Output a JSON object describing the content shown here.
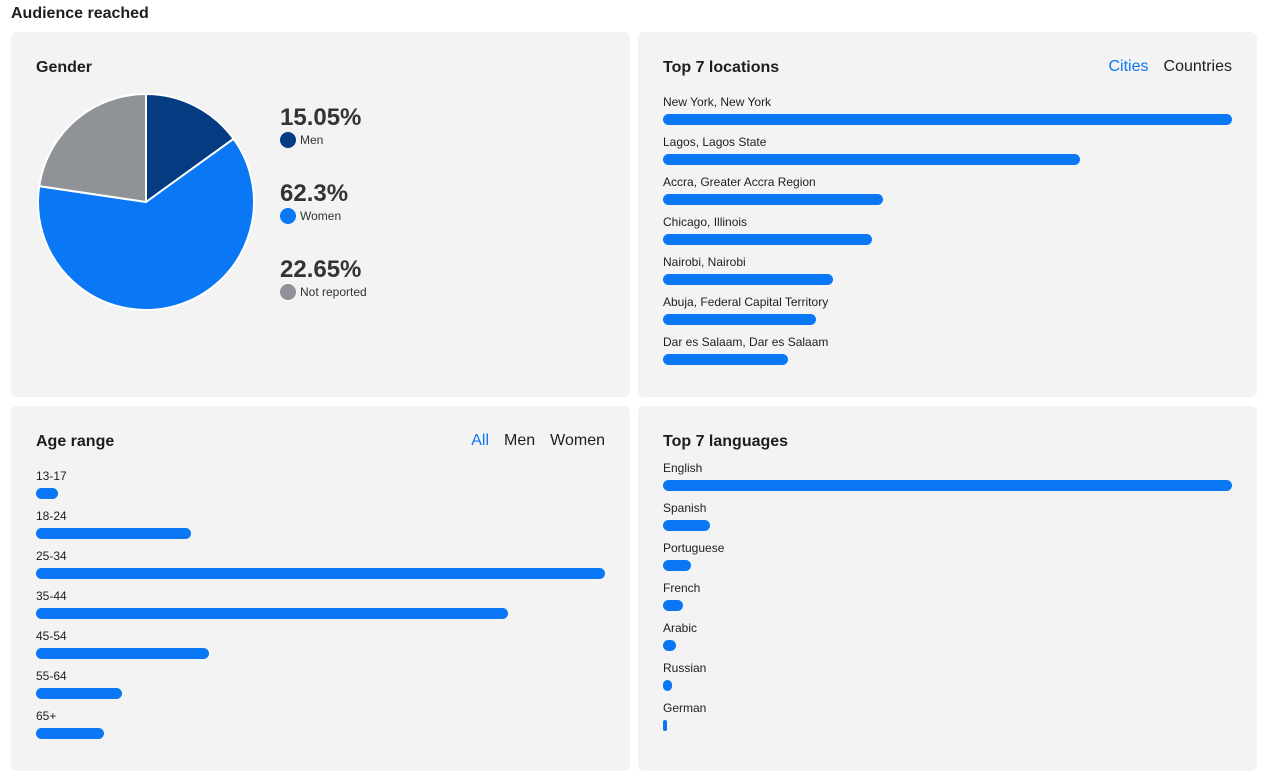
{
  "page": {
    "title": "Audience reached"
  },
  "colors": {
    "men": "#053b80",
    "women": "#0a78f5",
    "not_reported": "#8f9296",
    "bar": "#0a78f5"
  },
  "gender": {
    "title": "Gender",
    "items": [
      {
        "pct": "15.05%",
        "label": "Men",
        "value": 15.05,
        "color": "#053b80"
      },
      {
        "pct": "62.3%",
        "label": "Women",
        "value": 62.3,
        "color": "#0a78f5"
      },
      {
        "pct": "22.65%",
        "label": "Not reported",
        "value": 22.65,
        "color": "#8f9296"
      }
    ]
  },
  "locations": {
    "title": "Top 7 locations",
    "tabs": [
      {
        "label": "Cities",
        "active": true
      },
      {
        "label": "Countries",
        "active": false
      }
    ],
    "items": [
      {
        "label": "New York, New York",
        "value": 100
      },
      {
        "label": "Lagos, Lagos State",
        "value": 73.3
      },
      {
        "label": "Accra, Greater Accra Region",
        "value": 38.7
      },
      {
        "label": "Chicago, Illinois",
        "value": 36.7
      },
      {
        "label": "Nairobi, Nairobi",
        "value": 29.9
      },
      {
        "label": "Abuja, Federal Capital Territory",
        "value": 26.9
      },
      {
        "label": "Dar es Salaam, Dar es Salaam",
        "value": 22.0
      }
    ]
  },
  "age": {
    "title": "Age range",
    "tabs": [
      {
        "label": "All",
        "active": true
      },
      {
        "label": "Men",
        "active": false
      },
      {
        "label": "Women",
        "active": false
      }
    ],
    "items": [
      {
        "label": "13-17",
        "value": 3.9
      },
      {
        "label": "18-24",
        "value": 27.2
      },
      {
        "label": "25-34",
        "value": 100
      },
      {
        "label": "35-44",
        "value": 82.9
      },
      {
        "label": "45-54",
        "value": 30.4
      },
      {
        "label": "55-64",
        "value": 15.1
      },
      {
        "label": "65+",
        "value": 12.0
      }
    ]
  },
  "languages": {
    "title": "Top 7 languages",
    "items": [
      {
        "label": "English",
        "value": 100
      },
      {
        "label": "Spanish",
        "value": 8.3
      },
      {
        "label": "Portuguese",
        "value": 4.9
      },
      {
        "label": "French",
        "value": 3.5
      },
      {
        "label": "Arabic",
        "value": 2.3
      },
      {
        "label": "Russian",
        "value": 1.6
      },
      {
        "label": "German",
        "value": 0.7
      }
    ]
  }
}
